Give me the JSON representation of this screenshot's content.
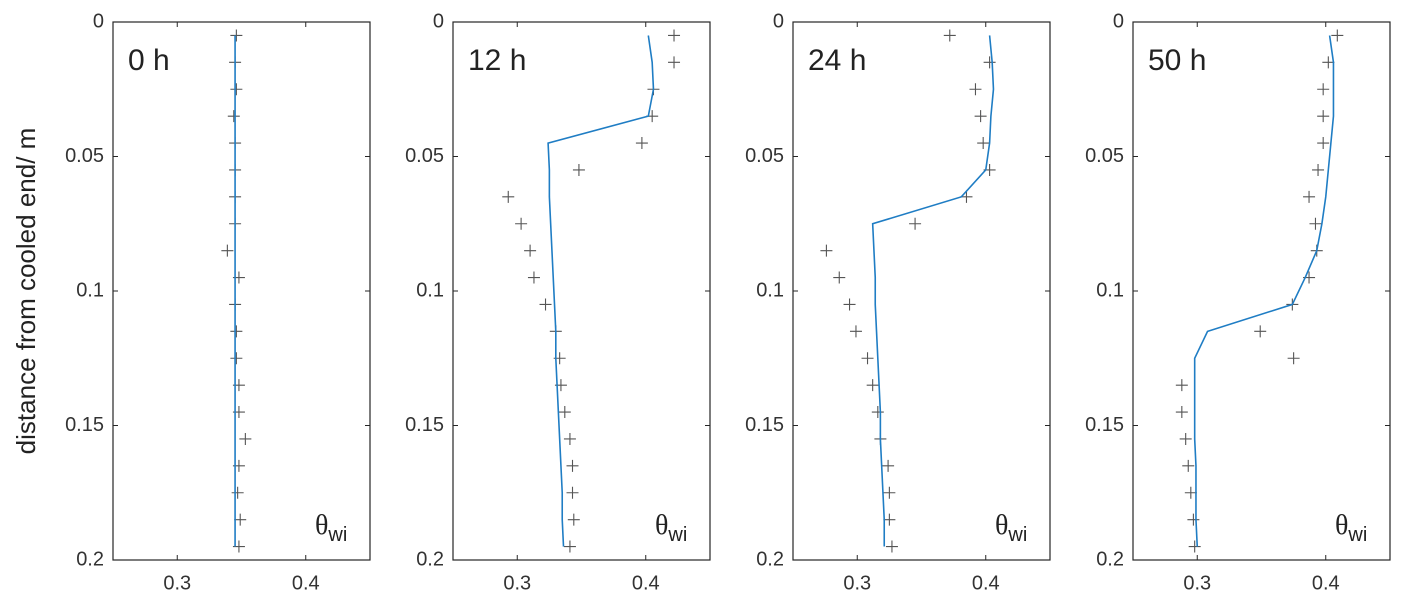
{
  "chart_data": [
    {
      "type": "line",
      "title": "0 h",
      "ylabel": "distance from cooled end/ m",
      "annotation": {
        "symbol": "θ",
        "subscript": "wi"
      },
      "xlim": [
        0.25,
        0.45
      ],
      "xticks": [
        0.3,
        0.4
      ],
      "ylim": [
        0,
        0.2
      ],
      "yticks": [
        0,
        0.05,
        0.1,
        0.15,
        0.2
      ],
      "y_reversed": true,
      "y": [
        0.005,
        0.015,
        0.025,
        0.035,
        0.045,
        0.055,
        0.065,
        0.075,
        0.085,
        0.095,
        0.105,
        0.115,
        0.125,
        0.135,
        0.145,
        0.155,
        0.165,
        0.175,
        0.185,
        0.195
      ],
      "series": [
        {
          "color": "#555555",
          "marker": "+",
          "values": [
            0.346,
            0.345,
            0.346,
            0.344,
            0.345,
            0.345,
            0.345,
            0.345,
            0.339,
            0.348,
            0.345,
            0.346,
            0.346,
            0.348,
            0.348,
            0.353,
            0.348,
            0.347,
            0.349,
            0.348
          ]
        },
        {
          "color": "#1f7dc4",
          "values": [
            0.345,
            0.345,
            0.345,
            0.345,
            0.345,
            0.345,
            0.345,
            0.345,
            0.345,
            0.345,
            0.345,
            0.345,
            0.345,
            0.345,
            0.345,
            0.345,
            0.345,
            0.345,
            0.345,
            0.345
          ]
        }
      ]
    },
    {
      "type": "line",
      "title": "12 h",
      "annotation": {
        "symbol": "θ",
        "subscript": "wi"
      },
      "xlim": [
        0.25,
        0.45
      ],
      "xticks": [
        0.3,
        0.4
      ],
      "ylim": [
        0,
        0.2
      ],
      "yticks": [
        0,
        0.05,
        0.1,
        0.15,
        0.2
      ],
      "y_reversed": true,
      "y": [
        0.005,
        0.015,
        0.025,
        0.035,
        0.045,
        0.055,
        0.065,
        0.075,
        0.085,
        0.095,
        0.105,
        0.115,
        0.125,
        0.135,
        0.145,
        0.155,
        0.165,
        0.175,
        0.185,
        0.195
      ],
      "series": [
        {
          "color": "#555555",
          "marker": "+",
          "values": [
            0.422,
            0.422,
            0.406,
            0.405,
            0.397,
            0.348,
            0.293,
            0.303,
            0.31,
            0.313,
            0.322,
            0.33,
            0.333,
            0.334,
            0.337,
            0.341,
            0.343,
            0.343,
            0.344,
            0.341
          ]
        },
        {
          "color": "#1f7dc4",
          "values": [
            0.402,
            0.405,
            0.406,
            0.402,
            0.324,
            0.325,
            0.325,
            0.326,
            0.327,
            0.328,
            0.329,
            0.33,
            0.33,
            0.331,
            0.332,
            0.333,
            0.334,
            0.335,
            0.335,
            0.336
          ]
        }
      ]
    },
    {
      "type": "line",
      "title": "24 h",
      "annotation": {
        "symbol": "θ",
        "subscript": "wi"
      },
      "xlim": [
        0.25,
        0.45
      ],
      "xticks": [
        0.3,
        0.4
      ],
      "ylim": [
        0,
        0.2
      ],
      "yticks": [
        0,
        0.05,
        0.1,
        0.15,
        0.2
      ],
      "y_reversed": true,
      "y": [
        0.005,
        0.015,
        0.025,
        0.035,
        0.045,
        0.055,
        0.065,
        0.075,
        0.085,
        0.095,
        0.105,
        0.115,
        0.125,
        0.135,
        0.145,
        0.155,
        0.165,
        0.175,
        0.185,
        0.195
      ],
      "series": [
        {
          "color": "#555555",
          "marker": "+",
          "values": [
            0.372,
            0.403,
            0.392,
            0.396,
            0.398,
            0.403,
            0.385,
            0.345,
            0.276,
            0.286,
            0.294,
            0.299,
            0.308,
            0.312,
            0.316,
            0.318,
            0.324,
            0.325,
            0.325,
            0.327
          ]
        },
        {
          "color": "#1f7dc4",
          "values": [
            0.403,
            0.405,
            0.406,
            0.404,
            0.403,
            0.4,
            0.381,
            0.312,
            0.313,
            0.314,
            0.314,
            0.315,
            0.316,
            0.317,
            0.318,
            0.318,
            0.319,
            0.32,
            0.321,
            0.321
          ]
        }
      ]
    },
    {
      "type": "line",
      "title": "50 h",
      "annotation": {
        "symbol": "θ",
        "subscript": "wi"
      },
      "xlim": [
        0.25,
        0.45
      ],
      "xticks": [
        0.3,
        0.4
      ],
      "ylim": [
        0,
        0.2
      ],
      "yticks": [
        0,
        0.05,
        0.1,
        0.15,
        0.2
      ],
      "y_reversed": true,
      "y": [
        0.005,
        0.015,
        0.025,
        0.035,
        0.045,
        0.055,
        0.065,
        0.075,
        0.085,
        0.095,
        0.105,
        0.115,
        0.125,
        0.135,
        0.145,
        0.155,
        0.165,
        0.175,
        0.185,
        0.195
      ],
      "series": [
        {
          "color": "#555555",
          "marker": "+",
          "values": [
            0.409,
            0.402,
            0.398,
            0.398,
            0.398,
            0.394,
            0.387,
            0.392,
            0.393,
            0.387,
            0.374,
            0.349,
            0.375,
            0.288,
            0.288,
            0.291,
            0.293,
            0.295,
            0.297,
            0.298
          ]
        },
        {
          "color": "#1f7dc4",
          "values": [
            0.403,
            0.406,
            0.406,
            0.406,
            0.404,
            0.402,
            0.4,
            0.397,
            0.393,
            0.384,
            0.374,
            0.308,
            0.298,
            0.298,
            0.298,
            0.298,
            0.299,
            0.299,
            0.299,
            0.3
          ]
        }
      ]
    }
  ]
}
